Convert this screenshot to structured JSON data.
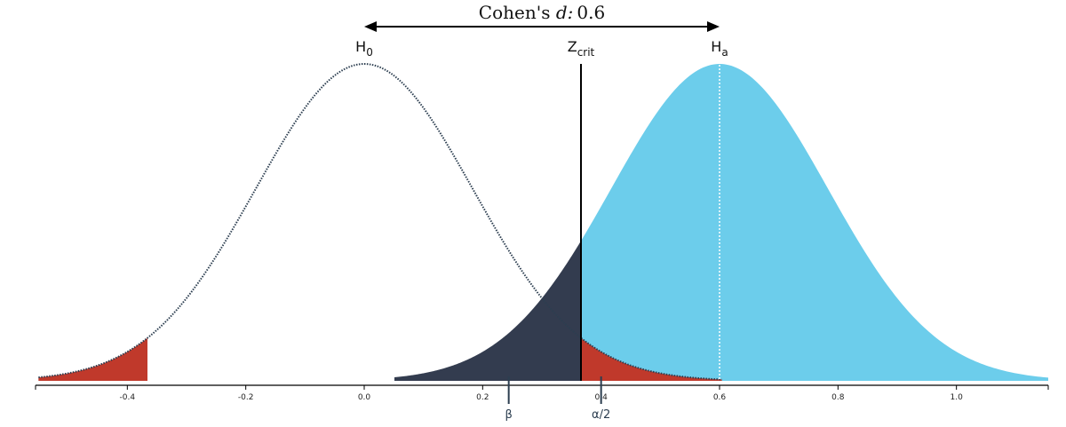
{
  "chart_data": {
    "type": "area",
    "title_prefix": "Cohen's ",
    "title_symbol": "d:",
    "title_value": "0.6",
    "effect_size": 0.6,
    "null_label": "H",
    "null_sub": "0",
    "alt_label": "H",
    "alt_sub": "a",
    "crit_label": "Z",
    "crit_sub": "crit",
    "beta_label": "β",
    "alpha_label": "α/2",
    "null_mean": 0.0,
    "alt_mean": 0.6,
    "sd": 0.183,
    "z_crit": 0.366,
    "xlim": [
      -0.555,
      1.155
    ],
    "x_ticks": [
      -0.4,
      -0.2,
      0.0,
      0.2,
      0.4,
      0.6,
      0.8,
      1.0
    ],
    "x_tick_labels": [
      "-0.4",
      "-0.2",
      "0.0",
      "0.2",
      "0.4",
      "0.6",
      "0.8",
      "1.0"
    ],
    "beta_marker_x": 0.244,
    "alpha_marker_x": 0.4,
    "colors": {
      "alt_fill": "#6ccdeb",
      "beta_fill": "#333c4f",
      "alpha_fill": "#c0392b",
      "null_line": "#2c3e50",
      "axis": "#000000",
      "mean_line": "#ffffff"
    }
  }
}
